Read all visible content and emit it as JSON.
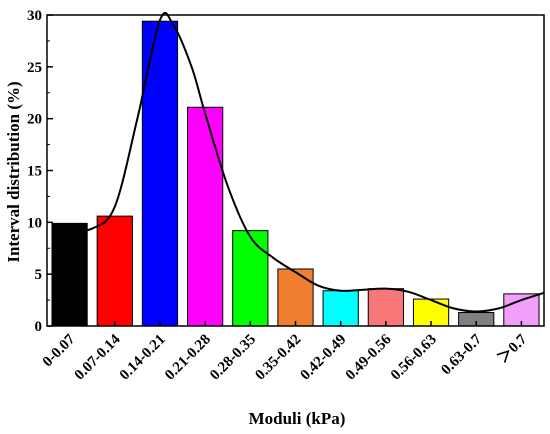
{
  "chart_data": {
    "type": "bar",
    "title": "",
    "xlabel": "Moduli (kPa)",
    "ylabel": "Interval distribution (%)",
    "ylim": [
      0,
      30
    ],
    "yticks": [
      0,
      5,
      10,
      15,
      20,
      25,
      30
    ],
    "categories": [
      "0-0.07",
      "0.07-0.14",
      "0.14-0.21",
      "0.21-0.28",
      "0.28-0.35",
      "0.35-0.42",
      "0.42-0.49",
      "0.49-0.56",
      "0.56-0.63",
      "0.63-0.7",
      "＞0.7"
    ],
    "values": [
      9.9,
      10.6,
      29.4,
      21.1,
      9.2,
      5.5,
      3.4,
      3.6,
      2.6,
      1.3,
      3.1
    ],
    "bar_colors": [
      "#000000",
      "#ff0000",
      "#0000ff",
      "#ff00ff",
      "#00ff00",
      "#f08030",
      "#00ffff",
      "#f87878",
      "#ffff00",
      "#808080",
      "#f0a0f8"
    ],
    "fit_curve": {
      "type": "smooth line",
      "color": "#000000",
      "points": [
        [
          0,
          9.3
        ],
        [
          0.5,
          9.4
        ],
        [
          1,
          11.5
        ],
        [
          1.5,
          20
        ],
        [
          2,
          29.5
        ],
        [
          2.3,
          29.0
        ],
        [
          2.7,
          25
        ],
        [
          3,
          20.5
        ],
        [
          3.5,
          13.5
        ],
        [
          4,
          8.6
        ],
        [
          4.5,
          6.6
        ],
        [
          5,
          5.2
        ],
        [
          5.5,
          3.9
        ],
        [
          6,
          3.4
        ],
        [
          6.5,
          3.5
        ],
        [
          7,
          3.6
        ],
        [
          7.5,
          3.3
        ],
        [
          8,
          2.5
        ],
        [
          8.5,
          1.7
        ],
        [
          9,
          1.4
        ],
        [
          9.5,
          1.7
        ],
        [
          10,
          2.5
        ],
        [
          10.5,
          3.2
        ]
      ]
    },
    "grid": false,
    "legend": "none"
  }
}
